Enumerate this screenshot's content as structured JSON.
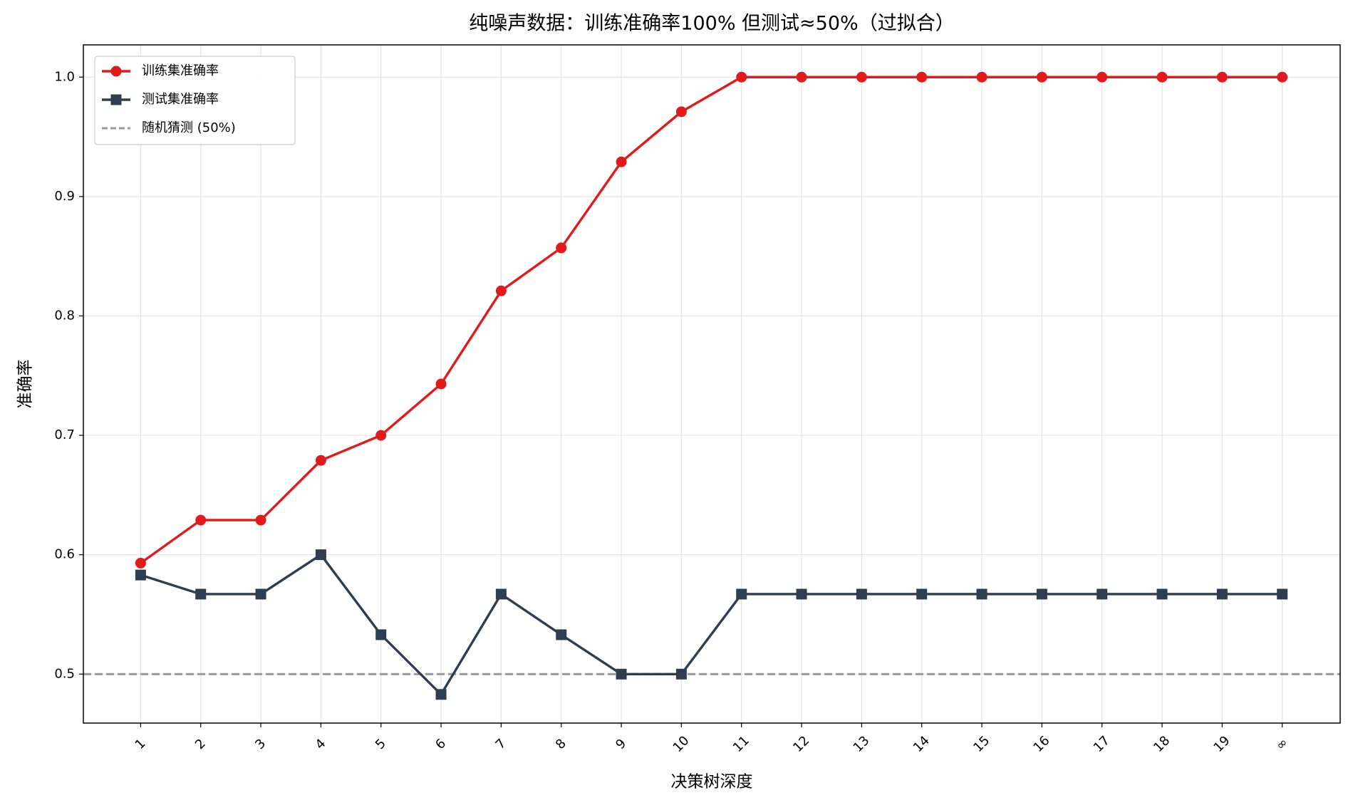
{
  "chart_data": {
    "type": "line",
    "title": "纯噪声数据：训练准确率100% 但测试≈50%（过拟合）",
    "x_label": "决策树深度",
    "y_label": "准确率",
    "categories": [
      "1",
      "2",
      "3",
      "4",
      "5",
      "6",
      "7",
      "8",
      "9",
      "10",
      "11",
      "12",
      "13",
      "14",
      "15",
      "16",
      "17",
      "18",
      "19",
      "∞"
    ],
    "series": [
      {
        "name": "训练集准确率",
        "color": "#e31a1c",
        "marker": "circle",
        "values": [
          0.593,
          0.629,
          0.629,
          0.679,
          0.7,
          0.743,
          0.821,
          0.857,
          0.929,
          0.971,
          1,
          1,
          1,
          1,
          1,
          1,
          1,
          1,
          1,
          1
        ]
      },
      {
        "name": "测试集准确率",
        "color": "#2c3e50",
        "marker": "square",
        "values": [
          0.583,
          0.567,
          0.567,
          0.6,
          0.533,
          0.483,
          0.567,
          0.533,
          0.5,
          0.5,
          0.567,
          0.567,
          0.567,
          0.567,
          0.567,
          0.567,
          0.567,
          0.567,
          0.567,
          0.567
        ]
      }
    ],
    "hline": {
      "name": "随机猜测 (50%)",
      "value": 0.5,
      "color": "#999999"
    },
    "ylim": [
      0.459,
      1.027
    ],
    "yticks": [
      0.5,
      0.6,
      0.7,
      0.8,
      0.9,
      {
        "value": 1,
        "label": "1.0"
      }
    ],
    "grid": true,
    "legend": "upper left"
  }
}
